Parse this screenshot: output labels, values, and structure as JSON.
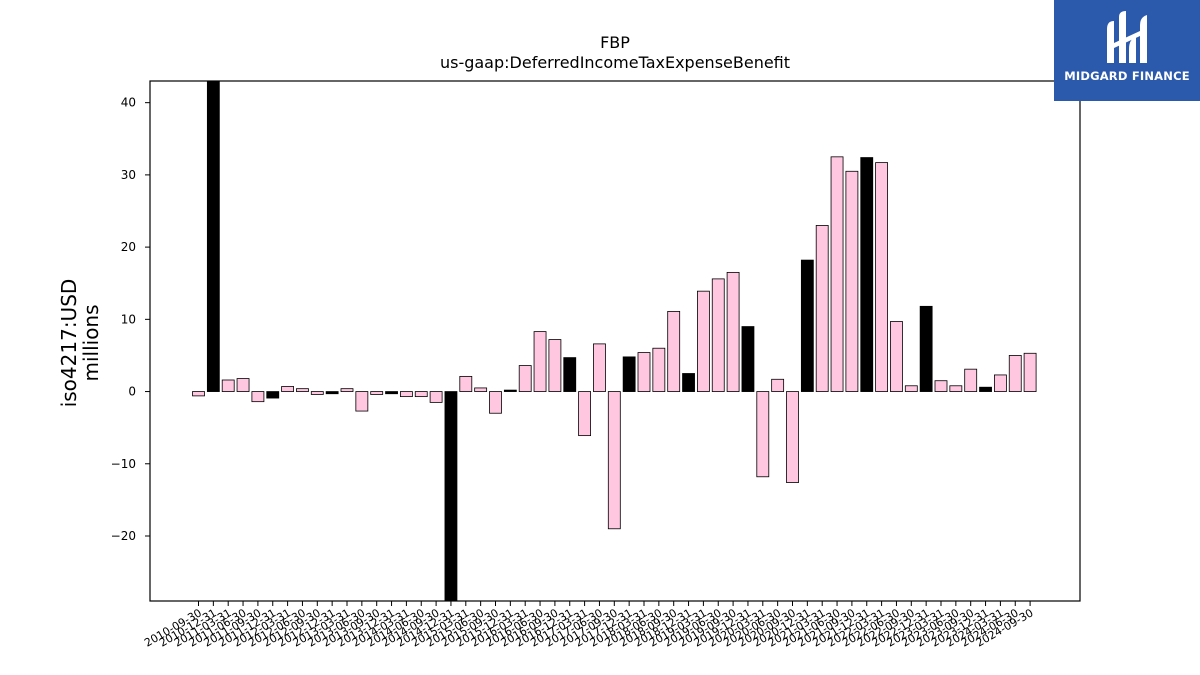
{
  "logo": {
    "text": "MIDGARD FINANCE",
    "color": "#2b5aad"
  },
  "chart_data": {
    "type": "bar",
    "title": "FBP",
    "subtitle": "us-gaap:DeferredIncomeTaxExpenseBenefit",
    "ylabel_line1": "iso4217:USD",
    "ylabel_line2": "millions",
    "ylim": [
      -29,
      43
    ],
    "yticks": [
      -20,
      -10,
      0,
      10,
      20,
      30,
      40
    ],
    "ytick_labels": [
      "−20",
      "−10",
      "0",
      "10",
      "20",
      "30",
      "40"
    ],
    "colors": {
      "quarter": "#ffc8e0",
      "annual": "#000000",
      "edge": "#000000"
    },
    "categories": [
      "2010-09-30",
      "2010-12-31",
      "2011-03-31",
      "2011-06-30",
      "2011-09-30",
      "2011-12-31",
      "2012-03-31",
      "2012-06-30",
      "2012-09-30",
      "2012-12-31",
      "2013-03-31",
      "2013-06-30",
      "2013-09-30",
      "2013-12-31",
      "2014-03-31",
      "2014-06-30",
      "2014-09-30",
      "2014-12-31",
      "2015-03-31",
      "2015-06-30",
      "2015-09-30",
      "2015-12-31",
      "2016-03-31",
      "2016-06-30",
      "2016-09-30",
      "2016-12-31",
      "2017-03-31",
      "2017-06-30",
      "2017-09-30",
      "2017-12-31",
      "2018-03-31",
      "2018-06-30",
      "2018-09-30",
      "2018-12-31",
      "2019-03-31",
      "2019-06-30",
      "2019-09-30",
      "2019-12-31",
      "2020-03-31",
      "2020-06-30",
      "2020-09-30",
      "2020-12-31",
      "2021-03-31",
      "2021-06-30",
      "2021-09-30",
      "2021-12-31",
      "2022-03-31",
      "2022-06-30",
      "2022-09-30",
      "2022-12-31",
      "2023-03-31",
      "2023-06-30",
      "2023-09-30",
      "2023-12-31",
      "2024-03-31",
      "2024-06-30",
      "2024-09-30"
    ],
    "values": [
      -0.6,
      43.0,
      1.6,
      1.8,
      -1.4,
      -0.9,
      0.7,
      0.4,
      -0.4,
      -0.3,
      0.4,
      -2.7,
      -0.4,
      -0.3,
      -0.7,
      -0.7,
      -1.5,
      -29.0,
      2.1,
      0.5,
      -3.0,
      0.2,
      3.6,
      8.3,
      7.2,
      4.7,
      -6.1,
      6.6,
      -19.0,
      4.8,
      5.4,
      6.0,
      11.1,
      2.5,
      13.9,
      15.6,
      16.5,
      9.0,
      -11.8,
      1.7,
      -12.6,
      18.2,
      23.0,
      32.5,
      30.5,
      32.4,
      31.7,
      9.7,
      0.8,
      11.8,
      1.5,
      0.8,
      3.1,
      0.6,
      2.3,
      5.0,
      5.3
    ],
    "annual_flags": [
      0,
      1,
      0,
      0,
      0,
      1,
      0,
      0,
      0,
      1,
      0,
      0,
      0,
      1,
      0,
      0,
      0,
      1,
      0,
      0,
      0,
      1,
      0,
      0,
      0,
      1,
      0,
      0,
      0,
      1,
      0,
      0,
      0,
      1,
      0,
      0,
      0,
      1,
      0,
      0,
      0,
      1,
      0,
      0,
      0,
      1,
      0,
      0,
      0,
      1,
      0,
      0,
      0,
      1,
      0,
      0,
      0
    ],
    "grid": false,
    "legend": "none"
  }
}
